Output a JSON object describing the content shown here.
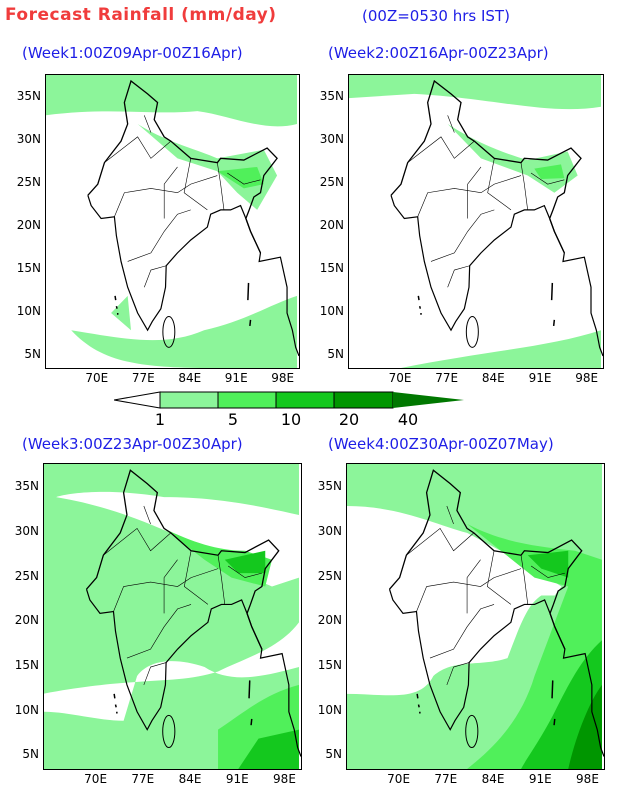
{
  "header": {
    "title": "Forecast Rainfall (mm/day)",
    "subtitle": "(00Z=0530 hrs IST)"
  },
  "panels": [
    {
      "title": "(Week1:00Z09Apr-00Z16Apr)"
    },
    {
      "title": "(Week2:00Z16Apr-00Z23Apr)"
    },
    {
      "title": "(Week3:00Z23Apr-00Z30Apr)"
    },
    {
      "title": "(Week4:00Z30Apr-00Z07May)"
    }
  ],
  "axes": {
    "lat_labels": [
      "35N",
      "30N",
      "25N",
      "20N",
      "15N",
      "10N",
      "5N"
    ],
    "lon_labels": [
      "70E",
      "77E",
      "84E",
      "91E",
      "98E"
    ]
  },
  "legend": {
    "levels": [
      "1",
      "5",
      "10",
      "20",
      "40"
    ],
    "colors": [
      "#ffffff",
      "#8cf59a",
      "#50f05a",
      "#14c81e",
      "#009600",
      "#007800"
    ]
  }
}
